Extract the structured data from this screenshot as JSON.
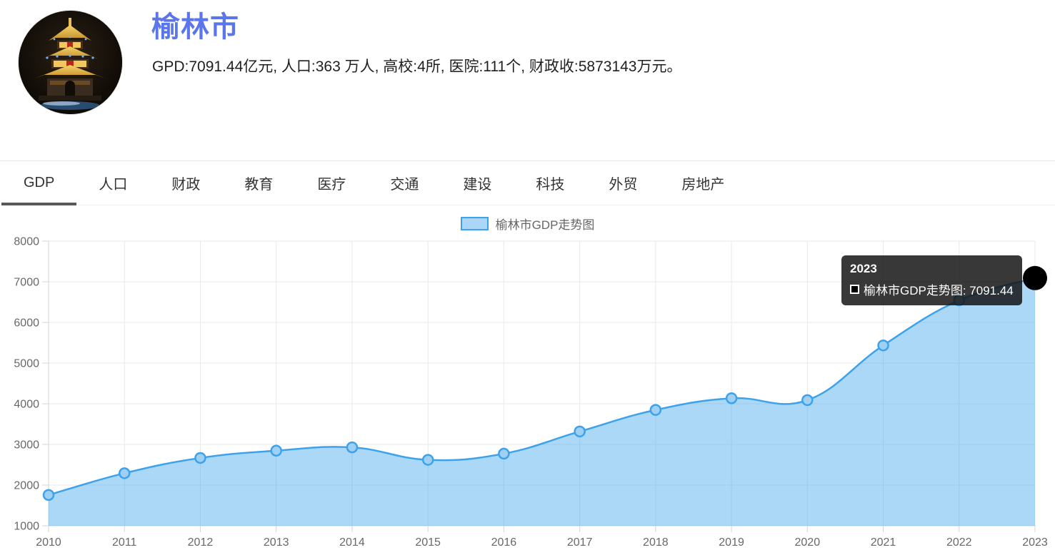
{
  "header": {
    "city_name": "榆林市",
    "summary": "GPD:7091.44亿元, 人口:363 万人, 高校:4所, 医院:111个, 财政收:5873143万元。",
    "title_color": "#5b76ea",
    "avatar": "yulin-drum-tower-night-photo"
  },
  "tabs": {
    "items": [
      {
        "label": "GDP",
        "active": true
      },
      {
        "label": "人口",
        "active": false
      },
      {
        "label": "财政",
        "active": false
      },
      {
        "label": "教育",
        "active": false
      },
      {
        "label": "医疗",
        "active": false
      },
      {
        "label": "交通",
        "active": false
      },
      {
        "label": "建设",
        "active": false
      },
      {
        "label": "科技",
        "active": false
      },
      {
        "label": "外贸",
        "active": false
      },
      {
        "label": "房地产",
        "active": false
      }
    ]
  },
  "chart_data": {
    "type": "area",
    "title": "榆林市GDP走势图",
    "legend": {
      "label": "榆林市GDP走势图",
      "position": "top-center"
    },
    "categories": [
      "2010",
      "2011",
      "2012",
      "2013",
      "2014",
      "2015",
      "2016",
      "2017",
      "2018",
      "2019",
      "2020",
      "2021",
      "2022",
      "2023"
    ],
    "values": [
      1756.67,
      2292.26,
      2667.73,
      2846.75,
      2927.96,
      2621.3,
      2773.05,
      3318.39,
      3848.62,
      4136.28,
      4089.66,
      5435.18,
      6543.65,
      7091.44
    ],
    "xlabel": "",
    "ylabel": "",
    "ylim": [
      1000,
      8000
    ],
    "ytick_step": 1000,
    "grid": true,
    "smooth": true,
    "line_color": "#3da2ec",
    "fill_color": "rgba(54,162,235,0.42)",
    "point_fill": "#9fd0f4",
    "axis_label_color": "#686868",
    "hover_point": {
      "category": "2023",
      "value": 7091.44,
      "color": "#000000",
      "radius": 17
    }
  },
  "tooltip": {
    "title": "2023",
    "series": "榆林市GDP走势图",
    "value": "7091.44",
    "text": "榆林市GDP走势图: 7091.44"
  }
}
